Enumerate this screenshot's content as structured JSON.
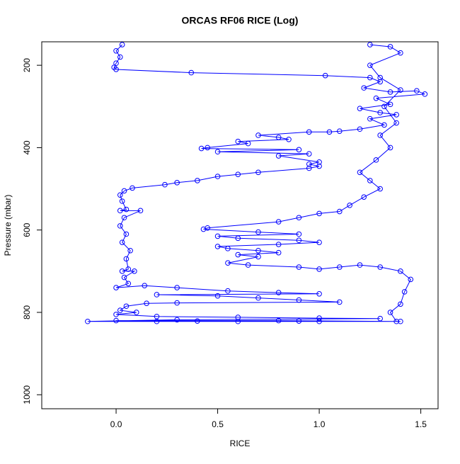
{
  "chart_data": {
    "type": "line",
    "title": "ORCAS RF06 RICE (Log)",
    "x_label": "RICE",
    "y_label": "Pressure (mbar)",
    "color": "#0000ff",
    "marker": "circle",
    "y_inverted": true,
    "xlim": [
      -0.366,
      1.585
    ],
    "ylim": [
      143,
      1034
    ],
    "xticks": [
      {
        "value": 0,
        "label": "0.0"
      },
      0.5,
      {
        "value": 1,
        "label": "1.0"
      },
      1.5
    ],
    "yticks": [
      200,
      400,
      600,
      800,
      1000
    ],
    "x": [
      0.03,
      0.0,
      0.02,
      0.0,
      -0.01,
      0.0,
      0.37,
      1.03,
      1.25,
      1.3,
      1.22,
      1.35,
      1.48,
      1.52,
      1.28,
      1.35,
      1.2,
      1.3,
      1.38,
      1.25,
      1.32,
      1.2,
      1.1,
      1.05,
      0.95,
      0.7,
      0.8,
      0.85,
      0.6,
      0.65,
      0.45,
      0.42,
      0.9,
      0.5,
      0.95,
      0.8,
      1.0,
      0.95,
      1.0,
      0.95,
      0.7,
      0.6,
      0.5,
      0.4,
      0.3,
      0.24,
      0.08,
      0.04,
      0.02,
      0.03,
      0.05,
      0.02,
      0.12,
      0.04,
      0.02,
      0.05,
      0.03,
      0.07,
      0.05,
      0.06,
      0.03,
      0.09,
      0.04,
      0.06,
      0.0,
      0.14,
      0.3,
      0.55,
      0.8,
      1.0,
      0.2,
      0.5,
      0.7,
      0.9,
      1.1,
      0.3,
      0.15,
      0.05,
      0.02,
      0.1,
      0.0,
      0.2,
      0.6,
      1.0,
      1.3,
      0.3,
      -0.14,
      0.2,
      0.6,
      1.0,
      1.4,
      0.9,
      0.4,
      0.0,
      0.8,
      1.38,
      1.35,
      1.4,
      1.42,
      1.45,
      1.4,
      1.3,
      1.2,
      1.1,
      1.0,
      0.9,
      0.65,
      0.55,
      0.7,
      0.6,
      0.8,
      0.7,
      0.55,
      0.5,
      0.8,
      1.0,
      0.9,
      0.6,
      0.5,
      0.9,
      0.7,
      0.43,
      0.45,
      0.8,
      0.9,
      1.0,
      1.1,
      1.15,
      1.22,
      1.3,
      1.25,
      1.2,
      1.28,
      1.35,
      1.3,
      1.38,
      1.32,
      1.4,
      1.3,
      1.25,
      1.4,
      1.35,
      1.25
    ],
    "values": [
      150,
      165,
      180,
      195,
      205,
      210,
      218,
      225,
      230,
      240,
      255,
      265,
      262,
      270,
      280,
      295,
      305,
      315,
      320,
      330,
      345,
      355,
      360,
      362,
      362,
      370,
      375,
      380,
      385,
      390,
      400,
      402,
      405,
      410,
      415,
      420,
      435,
      440,
      445,
      450,
      460,
      465,
      470,
      480,
      485,
      490,
      498,
      505,
      515,
      530,
      550,
      553,
      553,
      570,
      590,
      610,
      630,
      650,
      670,
      695,
      700,
      700,
      715,
      730,
      740,
      735,
      740,
      748,
      752,
      755,
      757,
      760,
      765,
      770,
      775,
      777,
      778,
      785,
      795,
      800,
      805,
      810,
      812,
      814,
      815,
      818,
      822,
      822,
      822,
      822,
      822,
      821,
      821,
      820,
      820,
      822,
      800,
      780,
      750,
      720,
      700,
      690,
      685,
      690,
      695,
      690,
      685,
      680,
      665,
      660,
      655,
      650,
      645,
      640,
      635,
      630,
      625,
      620,
      615,
      610,
      605,
      598,
      595,
      580,
      570,
      560,
      555,
      540,
      520,
      500,
      480,
      460,
      430,
      400,
      370,
      340,
      300,
      260,
      230,
      200,
      170,
      155,
      150
    ]
  }
}
